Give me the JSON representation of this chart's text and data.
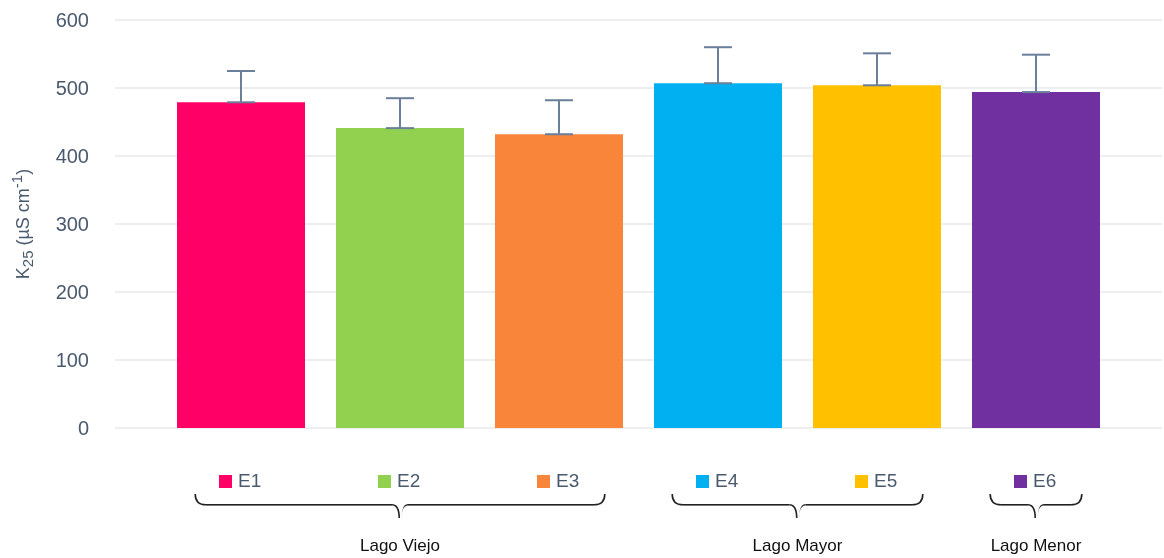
{
  "chart_data": {
    "type": "bar",
    "ylabel": "K$_{25}$ (µS cm$^{-1}$)",
    "categories": [
      null
    ],
    "series": [
      {
        "name": "E1",
        "color": "#ff0066",
        "values": [
          479
        ],
        "errors": [
          [
            479,
            525
          ]
        ]
      },
      {
        "name": "E2",
        "color": "#92d050",
        "values": [
          441
        ],
        "errors": [
          [
            441,
            485
          ]
        ]
      },
      {
        "name": "E3",
        "color": "#f88539",
        "values": [
          432
        ],
        "errors": [
          [
            432,
            482
          ]
        ]
      },
      {
        "name": "E4",
        "color": "#00b0f0",
        "values": [
          507
        ],
        "errors": [
          [
            507,
            560
          ]
        ]
      },
      {
        "name": "E5",
        "color": "#ffc000",
        "values": [
          504
        ],
        "errors": [
          [
            504,
            551
          ]
        ]
      },
      {
        "name": "E6",
        "color": "#7030a0",
        "values": [
          494
        ],
        "errors": [
          [
            494,
            549
          ]
        ]
      }
    ],
    "ylim": [
      0,
      600
    ],
    "yticks": [
      0,
      100,
      200,
      300,
      400,
      500,
      600
    ],
    "grid": "y",
    "legend": "bottom",
    "annotations": [
      "Lago Viejo",
      "Lago Mayor",
      "Lago Menor"
    ]
  }
}
